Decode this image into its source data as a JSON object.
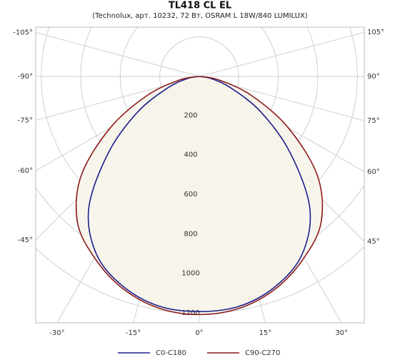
{
  "chart_data": {
    "type": "polar",
    "title": "TL418 CL EL",
    "subtitle": "(Technolux, арт. 10232, 72 Вт, OSRAM L 18W/840 LUMILUX)",
    "x": [
      -90,
      -80,
      -70,
      -60,
      -50,
      -40,
      -30,
      -20,
      -10,
      0,
      10,
      20,
      30,
      40,
      50,
      60,
      70,
      80,
      90
    ],
    "series": [
      {
        "name": "C0-C180",
        "color": "#1c1f8a",
        "values": [
          0,
          60,
          170,
          360,
          600,
          870,
          1040,
          1130,
          1180,
          1190,
          1180,
          1130,
          1040,
          870,
          600,
          360,
          170,
          60,
          0
        ]
      },
      {
        "name": "C90-C270",
        "color": "#8b1a1a",
        "values": [
          0,
          100,
          280,
          520,
          780,
          960,
          1060,
          1140,
          1190,
          1205,
          1190,
          1140,
          1060,
          960,
          780,
          520,
          280,
          100,
          0
        ]
      }
    ],
    "rlim": [
      0,
      1200
    ],
    "rticks": [
      200,
      400,
      600,
      800,
      1000,
      1200
    ],
    "angle_ticks": [
      {
        "value": -105,
        "label": "-105°"
      },
      {
        "value": -90,
        "label": "-90°"
      },
      {
        "value": -75,
        "label": "-75°"
      },
      {
        "value": -60,
        "label": "-60°"
      },
      {
        "value": -45,
        "label": "-45°"
      },
      {
        "value": -30,
        "label": "-30°"
      },
      {
        "value": -15,
        "label": "-15°"
      },
      {
        "value": 0,
        "label": "0°"
      },
      {
        "value": 15,
        "label": "15°"
      },
      {
        "value": 30,
        "label": "30°"
      },
      {
        "value": 45,
        "label": "45°"
      },
      {
        "value": 60,
        "label": "60°"
      },
      {
        "value": 75,
        "label": "75°"
      },
      {
        "value": 90,
        "label": "90°"
      },
      {
        "value": 105,
        "label": "105°"
      }
    ],
    "grid": true
  }
}
